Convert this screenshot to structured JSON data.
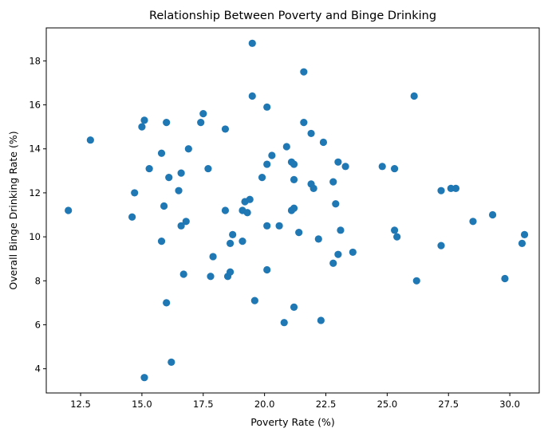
{
  "chart_data": {
    "type": "scatter",
    "title": "Relationship Between Poverty and Binge Drinking",
    "xlabel": "Poverty Rate (%)",
    "ylabel": "Overall Binge Drinking Rate (%)",
    "xlim": [
      11.1,
      31.2
    ],
    "ylim": [
      2.9,
      19.5
    ],
    "xticks": [
      12.5,
      15.0,
      17.5,
      20.0,
      22.5,
      25.0,
      27.5,
      30.0
    ],
    "xtick_labels": [
      "12.5",
      "15.0",
      "17.5",
      "20.0",
      "22.5",
      "25.0",
      "27.5",
      "30.0"
    ],
    "yticks": [
      4,
      6,
      8,
      10,
      12,
      14,
      16,
      18
    ],
    "ytick_labels": [
      "4",
      "6",
      "8",
      "10",
      "12",
      "14",
      "16",
      "18"
    ],
    "grid": false,
    "point_color": "#1f77b4",
    "points": [
      {
        "x": 12.0,
        "y": 11.2
      },
      {
        "x": 12.9,
        "y": 14.4
      },
      {
        "x": 14.6,
        "y": 10.9
      },
      {
        "x": 14.7,
        "y": 12.0
      },
      {
        "x": 15.0,
        "y": 15.0
      },
      {
        "x": 15.1,
        "y": 15.3
      },
      {
        "x": 15.3,
        "y": 13.1
      },
      {
        "x": 15.8,
        "y": 13.8
      },
      {
        "x": 15.8,
        "y": 9.8
      },
      {
        "x": 15.9,
        "y": 11.4
      },
      {
        "x": 16.0,
        "y": 15.2
      },
      {
        "x": 16.1,
        "y": 12.7
      },
      {
        "x": 16.5,
        "y": 12.1
      },
      {
        "x": 16.6,
        "y": 12.9
      },
      {
        "x": 16.6,
        "y": 10.5
      },
      {
        "x": 16.7,
        "y": 8.3
      },
      {
        "x": 16.8,
        "y": 10.7
      },
      {
        "x": 16.9,
        "y": 14.0
      },
      {
        "x": 16.0,
        "y": 7.0
      },
      {
        "x": 16.2,
        "y": 4.3
      },
      {
        "x": 15.1,
        "y": 3.6
      },
      {
        "x": 17.4,
        "y": 15.2
      },
      {
        "x": 17.5,
        "y": 15.6
      },
      {
        "x": 17.7,
        "y": 13.1
      },
      {
        "x": 17.8,
        "y": 8.2
      },
      {
        "x": 17.9,
        "y": 9.1
      },
      {
        "x": 18.4,
        "y": 14.9
      },
      {
        "x": 18.4,
        "y": 11.2
      },
      {
        "x": 18.5,
        "y": 8.2
      },
      {
        "x": 18.6,
        "y": 8.4
      },
      {
        "x": 18.6,
        "y": 9.7
      },
      {
        "x": 18.7,
        "y": 10.1
      },
      {
        "x": 19.1,
        "y": 11.2
      },
      {
        "x": 19.1,
        "y": 9.8
      },
      {
        "x": 19.2,
        "y": 11.6
      },
      {
        "x": 19.3,
        "y": 11.1
      },
      {
        "x": 19.4,
        "y": 11.7
      },
      {
        "x": 19.5,
        "y": 16.4
      },
      {
        "x": 19.5,
        "y": 18.8
      },
      {
        "x": 19.6,
        "y": 7.1
      },
      {
        "x": 19.9,
        "y": 12.7
      },
      {
        "x": 20.1,
        "y": 15.9
      },
      {
        "x": 20.1,
        "y": 13.3
      },
      {
        "x": 20.1,
        "y": 10.5
      },
      {
        "x": 20.1,
        "y": 8.5
      },
      {
        "x": 20.3,
        "y": 13.7
      },
      {
        "x": 20.6,
        "y": 10.5
      },
      {
        "x": 20.8,
        "y": 6.1
      },
      {
        "x": 20.9,
        "y": 14.1
      },
      {
        "x": 21.1,
        "y": 13.4
      },
      {
        "x": 21.1,
        "y": 11.2
      },
      {
        "x": 21.2,
        "y": 13.3
      },
      {
        "x": 21.2,
        "y": 12.6
      },
      {
        "x": 21.2,
        "y": 11.3
      },
      {
        "x": 21.2,
        "y": 6.8
      },
      {
        "x": 21.4,
        "y": 10.2
      },
      {
        "x": 21.6,
        "y": 17.5
      },
      {
        "x": 21.6,
        "y": 15.2
      },
      {
        "x": 21.9,
        "y": 14.7
      },
      {
        "x": 21.9,
        "y": 12.4
      },
      {
        "x": 22.0,
        "y": 12.2
      },
      {
        "x": 22.2,
        "y": 9.9
      },
      {
        "x": 22.3,
        "y": 6.2
      },
      {
        "x": 22.4,
        "y": 14.3
      },
      {
        "x": 22.8,
        "y": 12.5
      },
      {
        "x": 22.8,
        "y": 8.8
      },
      {
        "x": 22.9,
        "y": 11.5
      },
      {
        "x": 23.0,
        "y": 13.4
      },
      {
        "x": 23.0,
        "y": 9.2
      },
      {
        "x": 23.1,
        "y": 10.3
      },
      {
        "x": 23.3,
        "y": 13.2
      },
      {
        "x": 23.6,
        "y": 9.3
      },
      {
        "x": 24.8,
        "y": 13.2
      },
      {
        "x": 25.3,
        "y": 13.1
      },
      {
        "x": 25.3,
        "y": 10.3
      },
      {
        "x": 25.4,
        "y": 10.0
      },
      {
        "x": 26.1,
        "y": 16.4
      },
      {
        "x": 26.2,
        "y": 8.0
      },
      {
        "x": 27.2,
        "y": 12.1
      },
      {
        "x": 27.2,
        "y": 9.6
      },
      {
        "x": 27.6,
        "y": 12.2
      },
      {
        "x": 27.8,
        "y": 12.2
      },
      {
        "x": 28.5,
        "y": 10.7
      },
      {
        "x": 29.3,
        "y": 11.0
      },
      {
        "x": 29.8,
        "y": 8.1
      },
      {
        "x": 30.5,
        "y": 9.7
      },
      {
        "x": 30.6,
        "y": 10.1
      }
    ]
  }
}
